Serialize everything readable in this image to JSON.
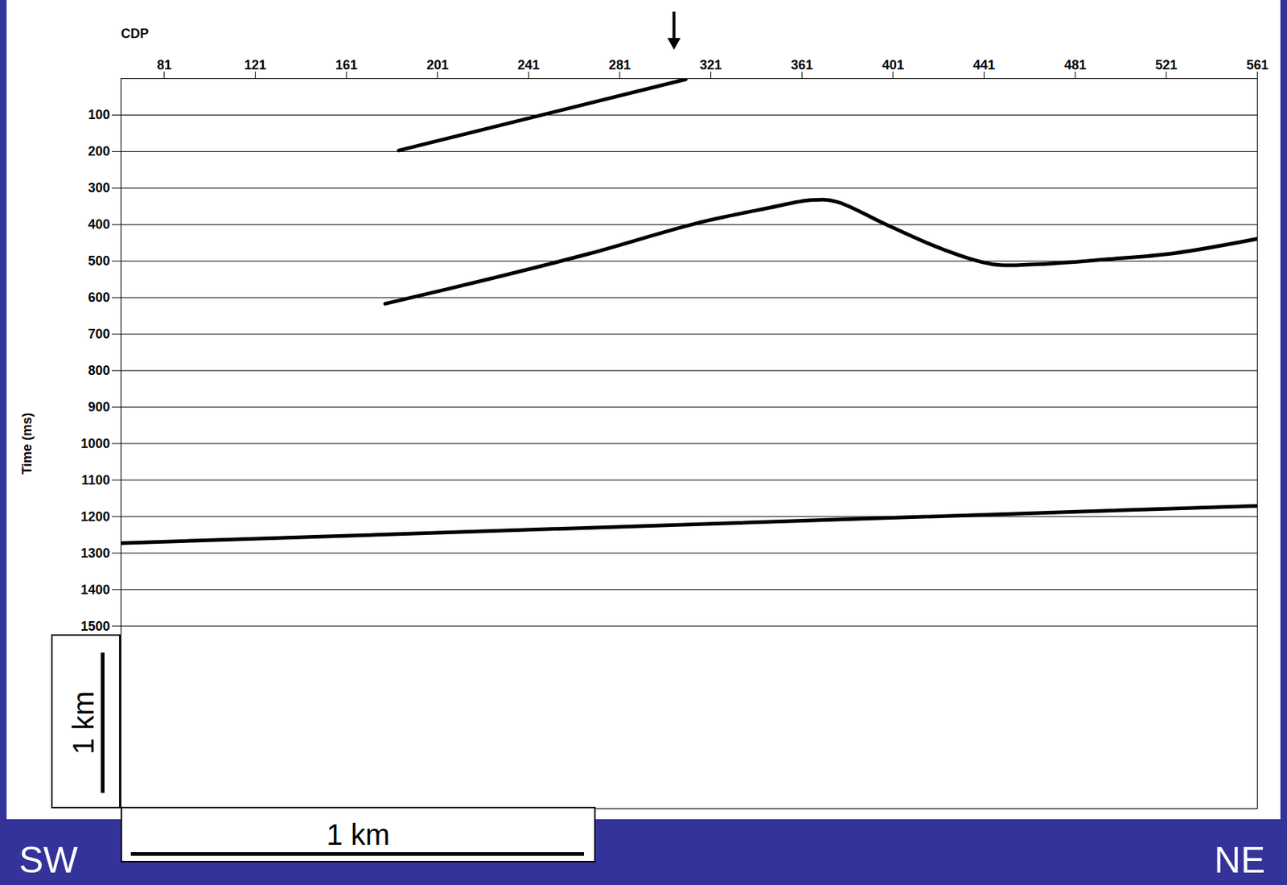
{
  "chart_data": {
    "type": "seismic_section",
    "x_label": "CDP",
    "y_label": "Time (ms)",
    "xlim": [
      62,
      561
    ],
    "xticks": [
      81,
      121,
      161,
      201,
      241,
      281,
      321,
      361,
      401,
      441,
      481,
      521,
      561
    ],
    "ylim": [
      0,
      2000
    ],
    "yticks": [
      100,
      200,
      300,
      400,
      500,
      600,
      700,
      800,
      900,
      1000,
      1100,
      1200,
      1300,
      1400,
      1500
    ],
    "grid": true,
    "horizons": [
      {
        "type": "line",
        "color": "#000000",
        "line_style": "solid",
        "x": [
          184,
          310
        ],
        "y": [
          197,
          2
        ]
      },
      {
        "type": "line",
        "color": "#000000",
        "line_style": "solid",
        "x": [
          178,
          225,
          268,
          315,
          346,
          365,
          376,
          398,
          423,
          445,
          463,
          495,
          524,
          561
        ],
        "y": [
          617,
          547,
          479,
          396,
          355,
          333,
          337,
          400,
          468,
          509,
          509,
          495,
          479,
          439
        ]
      },
      {
        "type": "line",
        "color": "#000000",
        "line_style": "solid",
        "x": [
          56,
          563
        ],
        "y": [
          1274,
          1170
        ]
      }
    ],
    "annotations": [
      {
        "x": 305,
        "marker": "arrow"
      }
    ],
    "direction_labels": {
      "left": "SW",
      "right": "NE"
    },
    "scale_bars": [
      {
        "label": "1 km",
        "axis": "x",
        "length": 199
      },
      {
        "label": "1 km",
        "axis": "y",
        "length": 384
      }
    ]
  }
}
